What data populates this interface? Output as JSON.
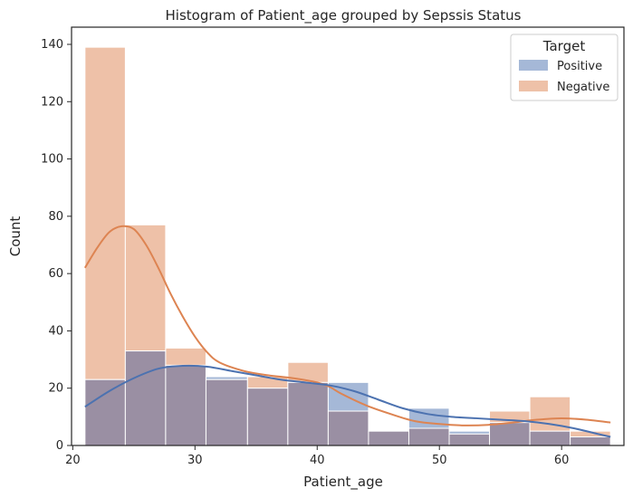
{
  "chart_data": {
    "type": "histogram",
    "title": "Histogram of Patient_age grouped by Sepssis  Status",
    "xlabel": "Patient_age",
    "ylabel": "Count",
    "xlim": [
      19.9,
      65.1
    ],
    "ylim": [
      0,
      146
    ],
    "xticks": [
      20,
      30,
      40,
      50,
      60
    ],
    "yticks": [
      0,
      20,
      40,
      60,
      80,
      100,
      120,
      140
    ],
    "bin_edges": [
      21,
      24.3,
      27.6,
      30.9,
      34.3,
      37.6,
      40.9,
      44.2,
      47.5,
      50.8,
      54.1,
      57.4,
      60.7,
      64
    ],
    "series": [
      {
        "name": "Positive",
        "color": "#4c72b0",
        "values": [
          23,
          33,
          28,
          24,
          20,
          22,
          22,
          5,
          13,
          5,
          8,
          5,
          3
        ],
        "kde": [
          [
            21,
            13.5
          ],
          [
            23,
            19
          ],
          [
            25,
            23.5
          ],
          [
            27,
            26.8
          ],
          [
            29,
            27.8
          ],
          [
            31,
            27.5
          ],
          [
            33,
            26
          ],
          [
            35,
            24.5
          ],
          [
            37,
            23
          ],
          [
            39,
            22
          ],
          [
            41,
            21
          ],
          [
            43,
            19
          ],
          [
            45,
            16
          ],
          [
            47,
            13
          ],
          [
            49,
            11
          ],
          [
            51,
            10
          ],
          [
            53,
            9.5
          ],
          [
            55,
            9
          ],
          [
            57,
            8.5
          ],
          [
            59,
            7.5
          ],
          [
            61,
            6
          ],
          [
            63,
            4
          ],
          [
            64,
            3
          ]
        ]
      },
      {
        "name": "Negative",
        "color": "#dd8452",
        "values": [
          139,
          77,
          34,
          23,
          24,
          29,
          12,
          5,
          6,
          4,
          12,
          17,
          5
        ],
        "kde": [
          [
            21,
            62
          ],
          [
            22,
            69
          ],
          [
            23,
            74.5
          ],
          [
            24,
            76.5
          ],
          [
            25,
            75.5
          ],
          [
            26,
            70
          ],
          [
            27,
            62
          ],
          [
            28,
            53
          ],
          [
            29,
            45
          ],
          [
            30,
            38
          ],
          [
            31,
            32.5
          ],
          [
            32,
            29
          ],
          [
            34,
            26
          ],
          [
            36,
            24.5
          ],
          [
            38,
            23.5
          ],
          [
            40,
            22
          ],
          [
            41,
            20.5
          ],
          [
            42,
            18
          ],
          [
            44,
            14
          ],
          [
            46,
            11
          ],
          [
            48,
            8.5
          ],
          [
            50,
            7.5
          ],
          [
            52,
            7
          ],
          [
            54,
            7.2
          ],
          [
            56,
            8
          ],
          [
            58,
            9
          ],
          [
            60,
            9.5
          ],
          [
            62,
            9
          ],
          [
            64,
            8
          ]
        ]
      }
    ],
    "overlap_color": "#9a8fa3",
    "legend": {
      "title": "Target",
      "position": "top-right"
    },
    "grid": false
  }
}
